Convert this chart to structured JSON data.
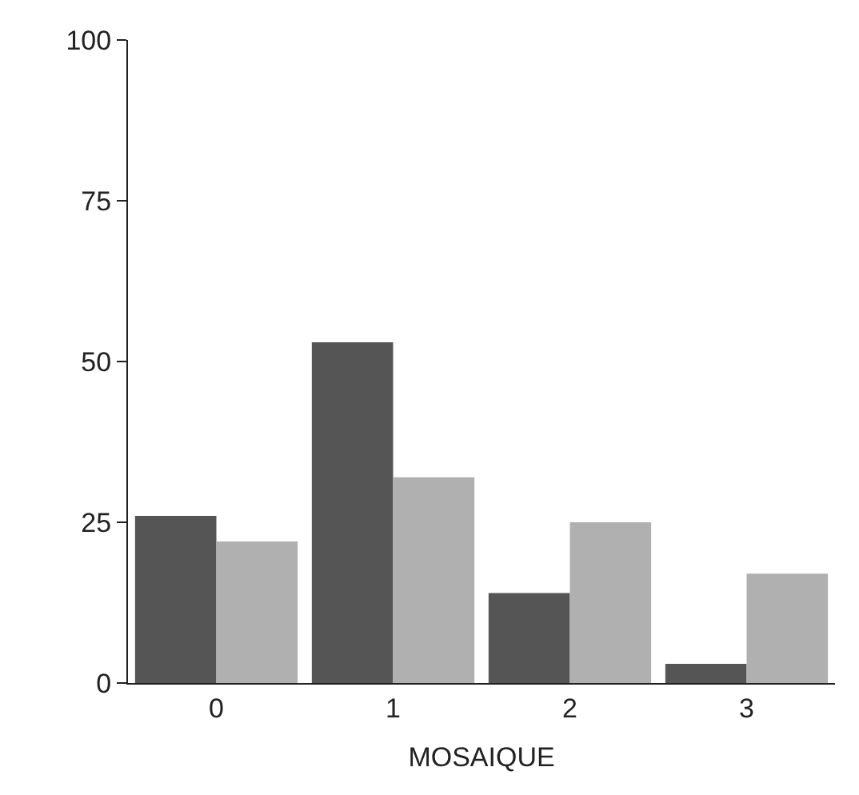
{
  "chart_data": {
    "type": "bar",
    "xlabel": "MOSAIQUE",
    "categories": [
      "0",
      "1",
      "2",
      "3"
    ],
    "series": [
      {
        "color": "#555555",
        "values": [
          26,
          53,
          14,
          3
        ]
      },
      {
        "color": "#b0b0b0",
        "values": [
          22,
          32,
          25,
          17
        ]
      }
    ],
    "ylim": [
      0,
      100
    ],
    "yticks": [
      0,
      25,
      50,
      75,
      100
    ]
  }
}
